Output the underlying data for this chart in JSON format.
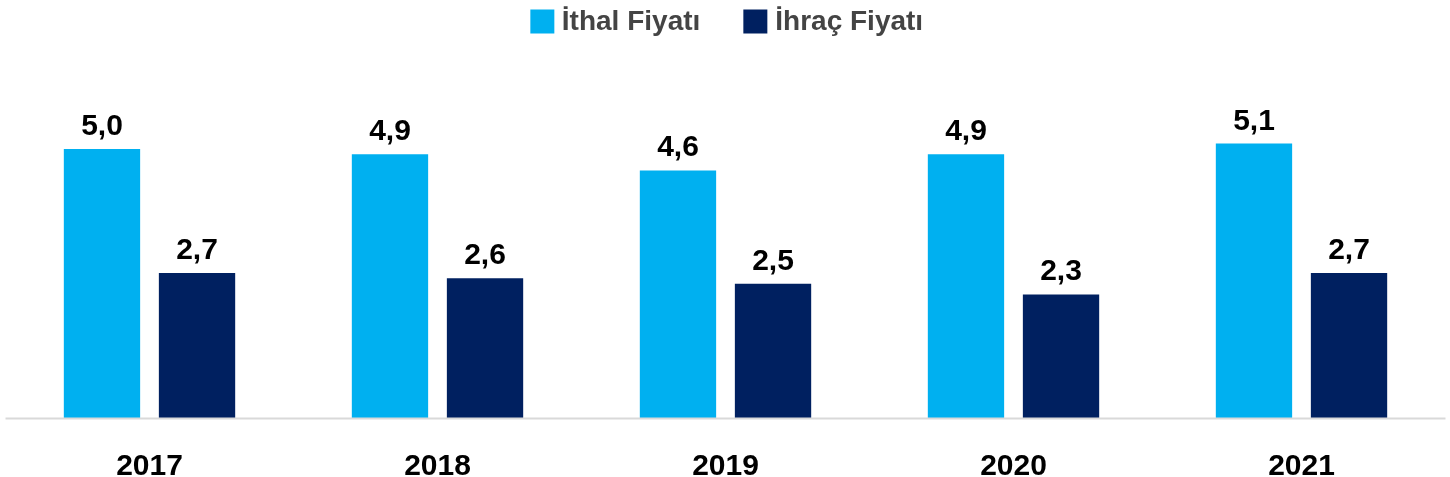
{
  "chart_data": {
    "type": "bar",
    "categories": [
      "2017",
      "2018",
      "2019",
      "2020",
      "2021"
    ],
    "series": [
      {
        "name": "İthal Fiyatı",
        "color": "#00b0f0",
        "values": [
          5.0,
          4.9,
          4.6,
          4.9,
          5.1
        ],
        "value_labels": [
          "5,0",
          "4,9",
          "4,6",
          "4,9",
          "5,1"
        ]
      },
      {
        "name": "İhraç Fiyatı",
        "color": "#002060",
        "values": [
          2.7,
          2.6,
          2.5,
          2.3,
          2.7
        ],
        "value_labels": [
          "2,7",
          "2,6",
          "2,5",
          "2,3",
          "2,7"
        ]
      }
    ],
    "legend": "top",
    "grid": false
  }
}
